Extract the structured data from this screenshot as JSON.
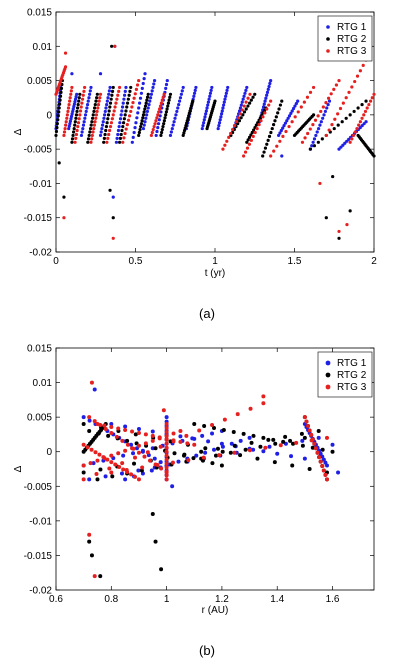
{
  "colors": {
    "rtg1": "#1f1fe6",
    "rtg2": "#000000",
    "rtg3": "#e61f1f"
  },
  "chart_data": [
    {
      "type": "scatter",
      "caption": "(a)",
      "xlabel": "t (yr)",
      "ylabel": "Δ",
      "xlim": [
        0,
        2
      ],
      "ylim": [
        -0.02,
        0.015
      ],
      "xticks": [
        "0",
        "0.5",
        "1",
        "1.5",
        "2"
      ],
      "yticks": [
        "0.015",
        "0.01",
        "0.005",
        "0",
        "-0.005",
        "-0.01",
        "-0.015",
        "-0.02"
      ],
      "xtick_values": [
        0,
        0.5,
        1,
        1.5,
        2
      ],
      "ytick_values": [
        0.015,
        0.01,
        0.005,
        0,
        -0.005,
        -0.01,
        -0.015,
        -0.02
      ],
      "grid": false,
      "legend_position": "top-right",
      "legend": [
        "RTG 1",
        "RTG 2",
        "RTG 3"
      ],
      "series": [
        {
          "name": "RTG 1",
          "color": "#1f1fe6",
          "marker": "dot",
          "segments": [
            [
              [
                0.0,
                -0.002
              ],
              [
                0.03,
                0.004
              ]
            ],
            [
              [
                0.08,
                -0.002
              ],
              [
                0.13,
                0.003
              ]
            ],
            [
              [
                0.16,
                -0.003
              ],
              [
                0.22,
                0.004
              ]
            ],
            [
              [
                0.28,
                -0.003
              ],
              [
                0.34,
                0.004
              ]
            ],
            [
              [
                0.38,
                -0.004
              ],
              [
                0.44,
                0.004
              ]
            ],
            [
              [
                0.48,
                -0.004
              ],
              [
                0.56,
                0.006
              ]
            ],
            [
              [
                0.55,
                -0.002
              ],
              [
                0.62,
                0.005
              ]
            ],
            [
              [
                0.63,
                -0.003
              ],
              [
                0.7,
                0.005
              ]
            ],
            [
              [
                0.72,
                -0.003
              ],
              [
                0.8,
                0.004
              ]
            ],
            [
              [
                0.82,
                -0.002
              ],
              [
                0.88,
                0.004
              ]
            ],
            [
              [
                0.92,
                -0.002
              ],
              [
                0.98,
                0.004
              ]
            ],
            [
              [
                1.02,
                -0.002
              ],
              [
                1.08,
                0.004
              ]
            ],
            [
              [
                1.12,
                -0.002
              ],
              [
                1.2,
                0.004
              ]
            ],
            [
              [
                1.28,
                -0.001
              ],
              [
                1.35,
                0.005
              ]
            ],
            [
              [
                1.4,
                -0.003
              ],
              [
                1.52,
                0.002
              ]
            ],
            [
              [
                1.6,
                -0.005
              ],
              [
                1.72,
                0.002
              ]
            ],
            [
              [
                1.78,
                -0.005
              ],
              [
                1.95,
                -0.001
              ]
            ]
          ],
          "outliers": [
            [
              0.1,
              0.006
            ],
            [
              0.28,
              0.006
            ],
            [
              0.37,
              0.01
            ],
            [
              0.36,
              -0.012
            ],
            [
              1.42,
              -0.006
            ]
          ]
        },
        {
          "name": "RTG 2",
          "color": "#000000",
          "marker": "dot",
          "segments": [
            [
              [
                0.0,
                -0.003
              ],
              [
                0.04,
                0.005
              ]
            ],
            [
              [
                0.1,
                -0.004
              ],
              [
                0.15,
                0.003
              ]
            ],
            [
              [
                0.2,
                -0.004
              ],
              [
                0.26,
                0.003
              ]
            ],
            [
              [
                0.3,
                -0.004
              ],
              [
                0.36,
                0.004
              ]
            ],
            [
              [
                0.4,
                -0.004
              ],
              [
                0.47,
                0.004
              ]
            ],
            [
              [
                0.52,
                -0.003
              ],
              [
                0.58,
                0.003
              ]
            ],
            [
              [
                0.66,
                -0.003
              ],
              [
                0.72,
                0.003
              ]
            ],
            [
              [
                0.8,
                -0.003
              ],
              [
                0.86,
                0.002
              ]
            ],
            [
              [
                0.95,
                -0.002
              ],
              [
                1.0,
                0.002
              ]
            ],
            [
              [
                1.1,
                -0.003
              ],
              [
                1.25,
                0.003
              ]
            ],
            [
              [
                1.2,
                -0.004
              ],
              [
                1.32,
                0.001
              ]
            ],
            [
              [
                1.3,
                -0.006
              ],
              [
                1.42,
                0.002
              ]
            ],
            [
              [
                1.5,
                -0.003
              ],
              [
                1.62,
                -0.0
              ]
            ],
            [
              [
                1.6,
                -0.005
              ],
              [
                1.95,
                0.002
              ]
            ],
            [
              [
                1.9,
                -0.003
              ],
              [
                2.0,
                -0.006
              ]
            ]
          ],
          "outliers": [
            [
              0.02,
              -0.007
            ],
            [
              0.05,
              -0.012
            ],
            [
              0.35,
              0.01
            ],
            [
              0.36,
              -0.015
            ],
            [
              0.34,
              -0.011
            ],
            [
              1.7,
              -0.015
            ],
            [
              1.78,
              -0.018
            ],
            [
              1.85,
              -0.014
            ],
            [
              1.74,
              -0.009
            ]
          ]
        },
        {
          "name": "RTG 3",
          "color": "#e61f1f",
          "marker": "dot",
          "segments": [
            [
              [
                0.0,
                0.003
              ],
              [
                0.06,
                0.007
              ]
            ],
            [
              [
                0.05,
                -0.003
              ],
              [
                0.1,
                0.004
              ]
            ],
            [
              [
                0.12,
                -0.004
              ],
              [
                0.18,
                0.004
              ]
            ],
            [
              [
                0.22,
                -0.004
              ],
              [
                0.28,
                0.003
              ]
            ],
            [
              [
                0.32,
                -0.004
              ],
              [
                0.4,
                0.004
              ]
            ],
            [
              [
                0.42,
                -0.004
              ],
              [
                0.52,
                0.005
              ]
            ],
            [
              [
                0.6,
                -0.003
              ],
              [
                0.68,
                0.003
              ]
            ],
            [
              [
                1.05,
                -0.005
              ],
              [
                1.22,
                0.003
              ]
            ],
            [
              [
                1.18,
                -0.006
              ],
              [
                1.35,
                0.002
              ]
            ],
            [
              [
                1.35,
                -0.006
              ],
              [
                1.62,
                0.004
              ]
            ],
            [
              [
                1.55,
                -0.004
              ],
              [
                1.78,
                0.005
              ]
            ],
            [
              [
                1.7,
                -0.003
              ],
              [
                1.95,
                0.008
              ]
            ],
            [
              [
                1.85,
                -0.004
              ],
              [
                2.0,
                0.003
              ]
            ]
          ],
          "outliers": [
            [
              0.06,
              0.009
            ],
            [
              0.05,
              -0.015
            ],
            [
              0.36,
              -0.018
            ],
            [
              0.37,
              0.01
            ],
            [
              1.78,
              -0.017
            ],
            [
              1.83,
              -0.016
            ],
            [
              1.66,
              -0.01
            ]
          ]
        }
      ]
    },
    {
      "type": "scatter",
      "caption": "(b)",
      "xlabel": "r (AU)",
      "ylabel": "Δ",
      "xlim": [
        0.6,
        1.75
      ],
      "ylim": [
        -0.02,
        0.015
      ],
      "xticks": [
        "0.6",
        "0.8",
        "1",
        "1.2",
        "1.4",
        "1.6"
      ],
      "yticks": [
        "0.015",
        "0.01",
        "0.005",
        "0",
        "-0.005",
        "-0.01",
        "-0.015",
        "-0.02"
      ],
      "xtick_values": [
        0.6,
        0.8,
        1.0,
        1.2,
        1.4,
        1.6
      ],
      "ytick_values": [
        0.015,
        0.01,
        0.005,
        0,
        -0.005,
        -0.01,
        -0.015,
        -0.02
      ],
      "grid": false,
      "legend_position": "top-right",
      "legend": [
        "RTG 1",
        "RTG 2",
        "RTG 3"
      ],
      "series": [
        {
          "name": "RTG 1",
          "color": "#1f1fe6",
          "marker": "dot",
          "segments": [
            [
              [
                0.7,
                0.005
              ],
              [
                1.0,
                -0.002
              ]
            ],
            [
              [
                0.72,
                -0.004
              ],
              [
                1.55,
                0.002
              ]
            ],
            [
              [
                0.8,
                0.004
              ],
              [
                1.5,
                -0.001
              ]
            ],
            [
              [
                0.7,
                -0.002
              ],
              [
                1.2,
                0.003
              ]
            ],
            [
              [
                1.0,
                0.005
              ],
              [
                1.0,
                -0.004
              ]
            ],
            [
              [
                1.5,
                0.004
              ],
              [
                1.58,
                -0.002
              ]
            ],
            [
              [
                0.85,
                -0.004
              ],
              [
                1.3,
                0.002
              ]
            ]
          ],
          "outliers": [
            [
              0.74,
              0.009
            ],
            [
              1.02,
              -0.005
            ],
            [
              1.62,
              -0.003
            ],
            [
              1.6,
              0.001
            ]
          ]
        },
        {
          "name": "RTG 2",
          "color": "#000000",
          "marker": "dot",
          "segments": [
            [
              [
                0.7,
                -0.003
              ],
              [
                1.55,
                0.003
              ]
            ],
            [
              [
                0.7,
                0.004
              ],
              [
                1.58,
                -0.003
              ]
            ],
            [
              [
                0.75,
                -0.004
              ],
              [
                1.5,
                0.002
              ]
            ],
            [
              [
                0.72,
                0.003
              ],
              [
                1.2,
                -0.002
              ]
            ],
            [
              [
                1.1,
                0.004
              ],
              [
                1.6,
                0.0
              ]
            ],
            [
              [
                0.7,
                0.0
              ],
              [
                0.78,
                0.004
              ]
            ],
            [
              [
                1.5,
                0.005
              ],
              [
                1.58,
                -0.004
              ]
            ]
          ],
          "outliers": [
            [
              0.72,
              -0.013
            ],
            [
              0.76,
              -0.018
            ],
            [
              0.73,
              -0.015
            ],
            [
              0.98,
              -0.017
            ],
            [
              0.96,
              -0.013
            ],
            [
              0.95,
              -0.009
            ]
          ]
        },
        {
          "name": "RTG 3",
          "color": "#e61f1f",
          "marker": "dot",
          "segments": [
            [
              [
                0.7,
                -0.004
              ],
              [
                1.35,
                0.007
              ]
            ],
            [
              [
                0.72,
                0.005
              ],
              [
                1.0,
                -0.003
              ]
            ],
            [
              [
                0.7,
                0.001
              ],
              [
                0.9,
                -0.004
              ]
            ],
            [
              [
                0.7,
                -0.002
              ],
              [
                1.05,
                0.003
              ]
            ],
            [
              [
                0.8,
                -0.003
              ],
              [
                1.58,
                0.002
              ]
            ],
            [
              [
                1.0,
                0.004
              ],
              [
                1.0,
                -0.004
              ]
            ],
            [
              [
                1.5,
                0.005
              ],
              [
                1.58,
                -0.004
              ]
            ],
            [
              [
                0.75,
                0.004
              ],
              [
                1.1,
                0.001
              ]
            ]
          ],
          "outliers": [
            [
              0.73,
              0.01
            ],
            [
              0.72,
              -0.012
            ],
            [
              0.74,
              -0.018
            ],
            [
              0.99,
              0.006
            ],
            [
              1.35,
              0.008
            ]
          ]
        }
      ]
    }
  ]
}
